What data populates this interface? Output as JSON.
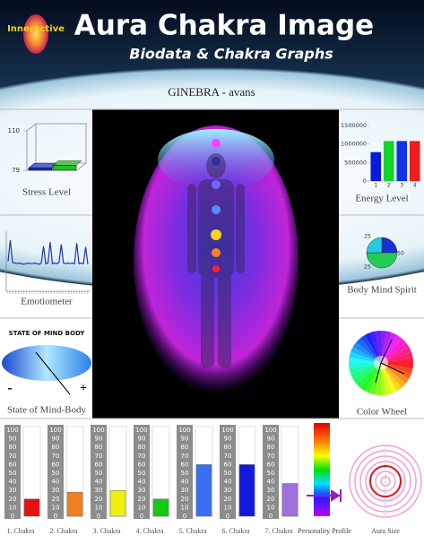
{
  "header": {
    "logo": "Inneractive",
    "title": "Aura Chakra Image",
    "subtitle": "Biodata & Chakra Graphs"
  },
  "name": "GINEBRA - avans",
  "stress_level": {
    "type": "bar3d",
    "label": "Stress Level",
    "ylim": [
      79,
      110
    ],
    "yticks": [
      79,
      110
    ],
    "values": [
      81,
      83
    ],
    "colors": [
      "#1a2fd0",
      "#1fc21f"
    ]
  },
  "emotiometer": {
    "type": "line",
    "label": "Emotiometer",
    "ylim": [
      0,
      100
    ],
    "color": "#2233aa",
    "values": [
      50,
      85,
      48,
      47,
      46,
      47,
      46,
      45,
      46,
      47,
      46,
      46,
      47,
      46,
      45,
      47,
      75,
      46,
      47,
      82,
      46,
      47,
      46,
      48,
      78,
      47,
      46,
      47,
      46,
      47,
      46,
      80,
      46,
      47,
      46,
      74,
      45
    ]
  },
  "state_of_mind_body": {
    "title": "STATE OF MIND BODY",
    "minus": "-",
    "plus": "+",
    "label": "State of Mind-Body"
  },
  "energy_level": {
    "type": "bar",
    "label": "Energy Level",
    "categories": [
      "1",
      "2",
      "3",
      "4"
    ],
    "values": [
      780000,
      1080000,
      1080000,
      1080000
    ],
    "colors": [
      "#0a1ad8",
      "#12d62a",
      "#1032e8",
      "#ee1c1c"
    ],
    "ylim": [
      0,
      1500000
    ],
    "yticks": [
      0,
      500000,
      1000000,
      1500000
    ]
  },
  "body_mind_spirit": {
    "type": "pie",
    "label": "Body Mind Spirit",
    "values": [
      25,
      50,
      25
    ],
    "colors": [
      "#1a2fd0",
      "#22cc55",
      "#22cce0"
    ]
  },
  "color_wheel": {
    "label": "Color Wheel"
  },
  "chakras": {
    "type": "bar",
    "ylim": [
      0,
      100
    ],
    "yticks": [
      0,
      10,
      20,
      30,
      40,
      50,
      60,
      70,
      80,
      90,
      100
    ],
    "categories": [
      "1. Chakra",
      "2. Chakra",
      "3. Chakra",
      "4. Chakra",
      "5. Chakra",
      "6. Chakra",
      "7. Chakra"
    ],
    "values": [
      20,
      28,
      30,
      20,
      60,
      60,
      38
    ],
    "colors": [
      "#e81010",
      "#f08020",
      "#f2ee10",
      "#14c814",
      "#3a6ef0",
      "#1418d8",
      "#a070e0"
    ]
  },
  "personality_profile": {
    "label": "Personality Profile"
  },
  "aura_size": {
    "label": "Aura Size"
  }
}
